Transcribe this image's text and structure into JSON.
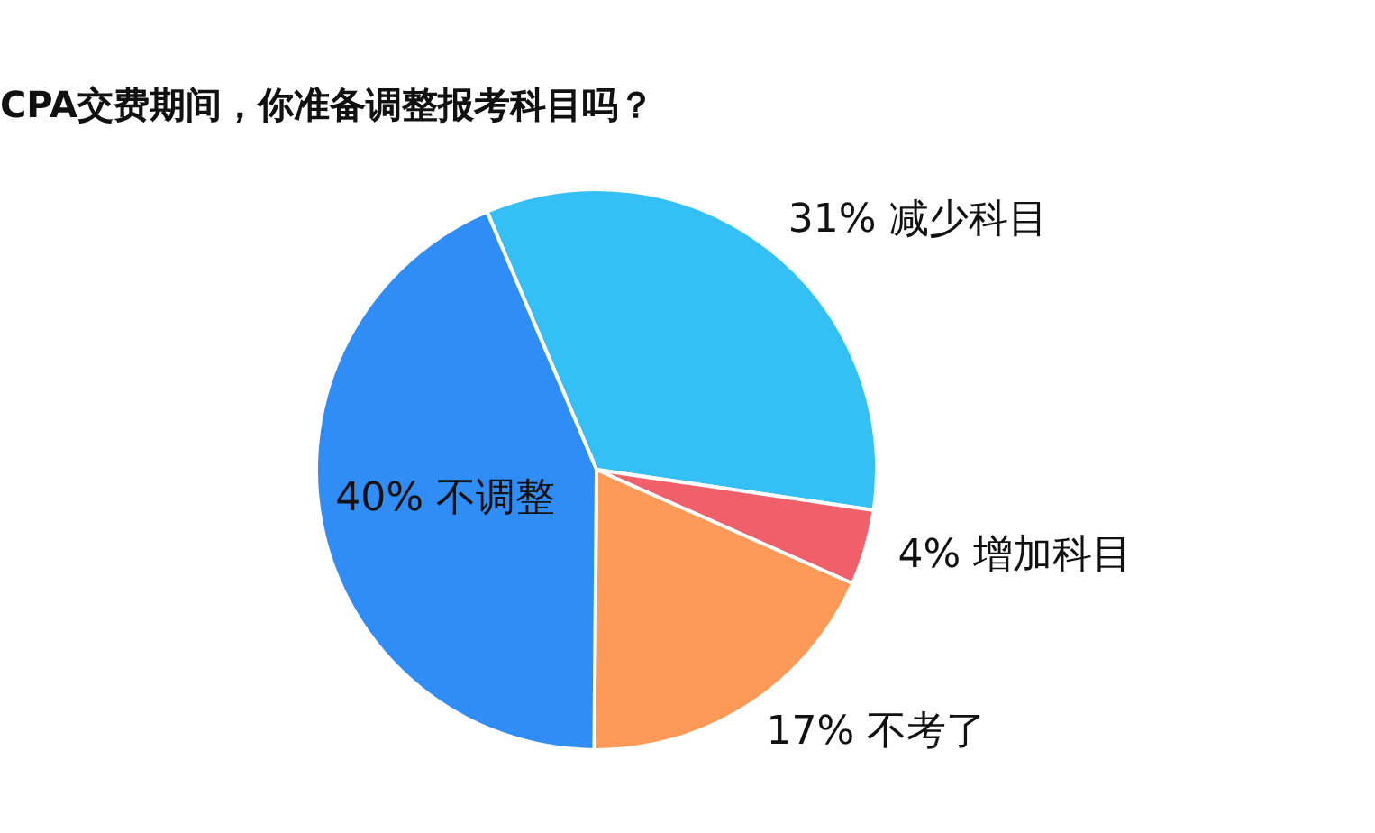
{
  "chart_data": {
    "type": "pie",
    "title": "CPA交费期间，你准备调整报考科目吗？",
    "categories": [
      "减少科目",
      "增加科目",
      "不考了",
      "不调整"
    ],
    "values": [
      31,
      4,
      17,
      40
    ],
    "colors": [
      "#35c0f5",
      "#f0606a",
      "#ff9957",
      "#2f8df5"
    ],
    "value_labels": [
      "31%",
      "4%",
      "17%",
      "40%"
    ],
    "legend": false
  }
}
